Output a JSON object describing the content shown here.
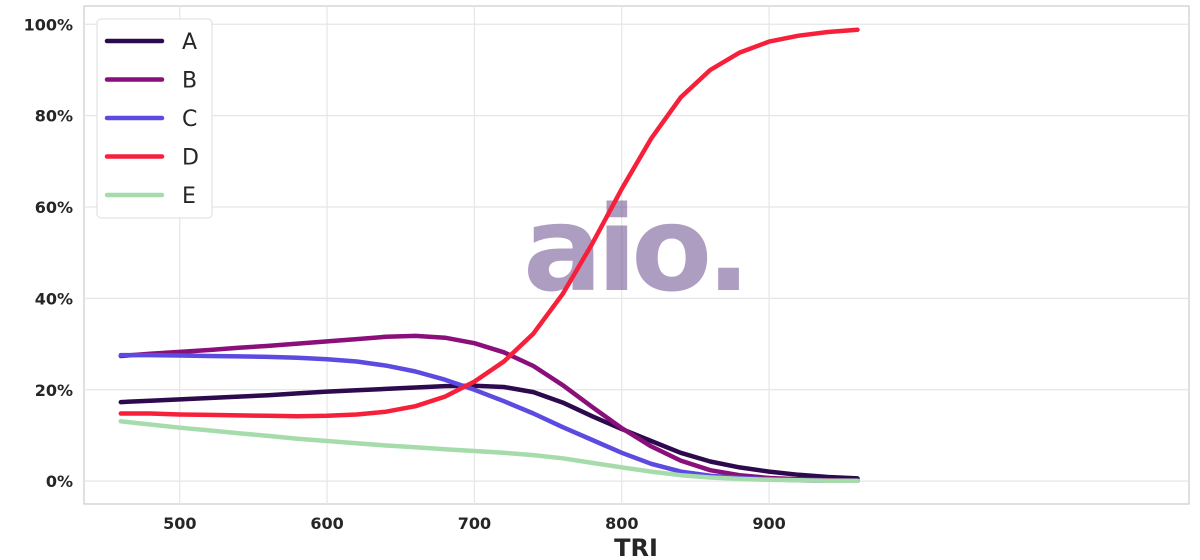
{
  "watermark": "aio.",
  "chart_data": {
    "type": "line",
    "xlabel": "TRI",
    "ylabel": "",
    "xlim": [
      435,
      1185
    ],
    "ylim": [
      -0.05,
      1.04
    ],
    "xticks": [
      500,
      600,
      700,
      800,
      900
    ],
    "yticks": [
      0,
      0.2,
      0.4,
      0.6,
      0.8,
      1.0
    ],
    "ytick_labels": [
      "0%",
      "20%",
      "40%",
      "60%",
      "80%",
      "100%"
    ],
    "grid": true,
    "legend": "top-left",
    "x": [
      460,
      480,
      500,
      520,
      540,
      560,
      580,
      600,
      620,
      640,
      660,
      680,
      700,
      720,
      740,
      760,
      780,
      800,
      820,
      840,
      860,
      880,
      900,
      920,
      940,
      960
    ],
    "series": [
      {
        "name": "A",
        "color": "#2d0a4e",
        "values": [
          0.173,
          0.176,
          0.179,
          0.182,
          0.185,
          0.188,
          0.192,
          0.196,
          0.199,
          0.202,
          0.205,
          0.208,
          0.209,
          0.206,
          0.195,
          0.172,
          0.142,
          0.114,
          0.088,
          0.062,
          0.043,
          0.03,
          0.021,
          0.014,
          0.009,
          0.006
        ]
      },
      {
        "name": "B",
        "color": "#8b0f7a",
        "values": [
          0.274,
          0.279,
          0.283,
          0.287,
          0.292,
          0.296,
          0.301,
          0.306,
          0.311,
          0.316,
          0.318,
          0.314,
          0.302,
          0.282,
          0.252,
          0.21,
          0.162,
          0.116,
          0.076,
          0.045,
          0.024,
          0.013,
          0.007,
          0.004,
          0.002,
          0.001
        ]
      },
      {
        "name": "C",
        "color": "#5b4be0",
        "values": [
          0.276,
          0.276,
          0.275,
          0.274,
          0.273,
          0.272,
          0.27,
          0.267,
          0.262,
          0.253,
          0.24,
          0.222,
          0.2,
          0.175,
          0.148,
          0.118,
          0.09,
          0.062,
          0.038,
          0.021,
          0.012,
          0.007,
          0.004,
          0.002,
          0.001,
          0.001
        ]
      },
      {
        "name": "D",
        "color": "#f7203a",
        "values": [
          0.148,
          0.148,
          0.146,
          0.145,
          0.144,
          0.143,
          0.142,
          0.143,
          0.146,
          0.152,
          0.164,
          0.185,
          0.218,
          0.262,
          0.323,
          0.41,
          0.52,
          0.64,
          0.75,
          0.84,
          0.9,
          0.938,
          0.962,
          0.975,
          0.983,
          0.988
        ]
      },
      {
        "name": "E",
        "color": "#a6dcac",
        "values": [
          0.131,
          0.124,
          0.117,
          0.111,
          0.105,
          0.099,
          0.093,
          0.088,
          0.083,
          0.078,
          0.074,
          0.07,
          0.066,
          0.062,
          0.057,
          0.05,
          0.04,
          0.03,
          0.021,
          0.013,
          0.008,
          0.005,
          0.003,
          0.002,
          0.001,
          0.001
        ]
      }
    ]
  }
}
